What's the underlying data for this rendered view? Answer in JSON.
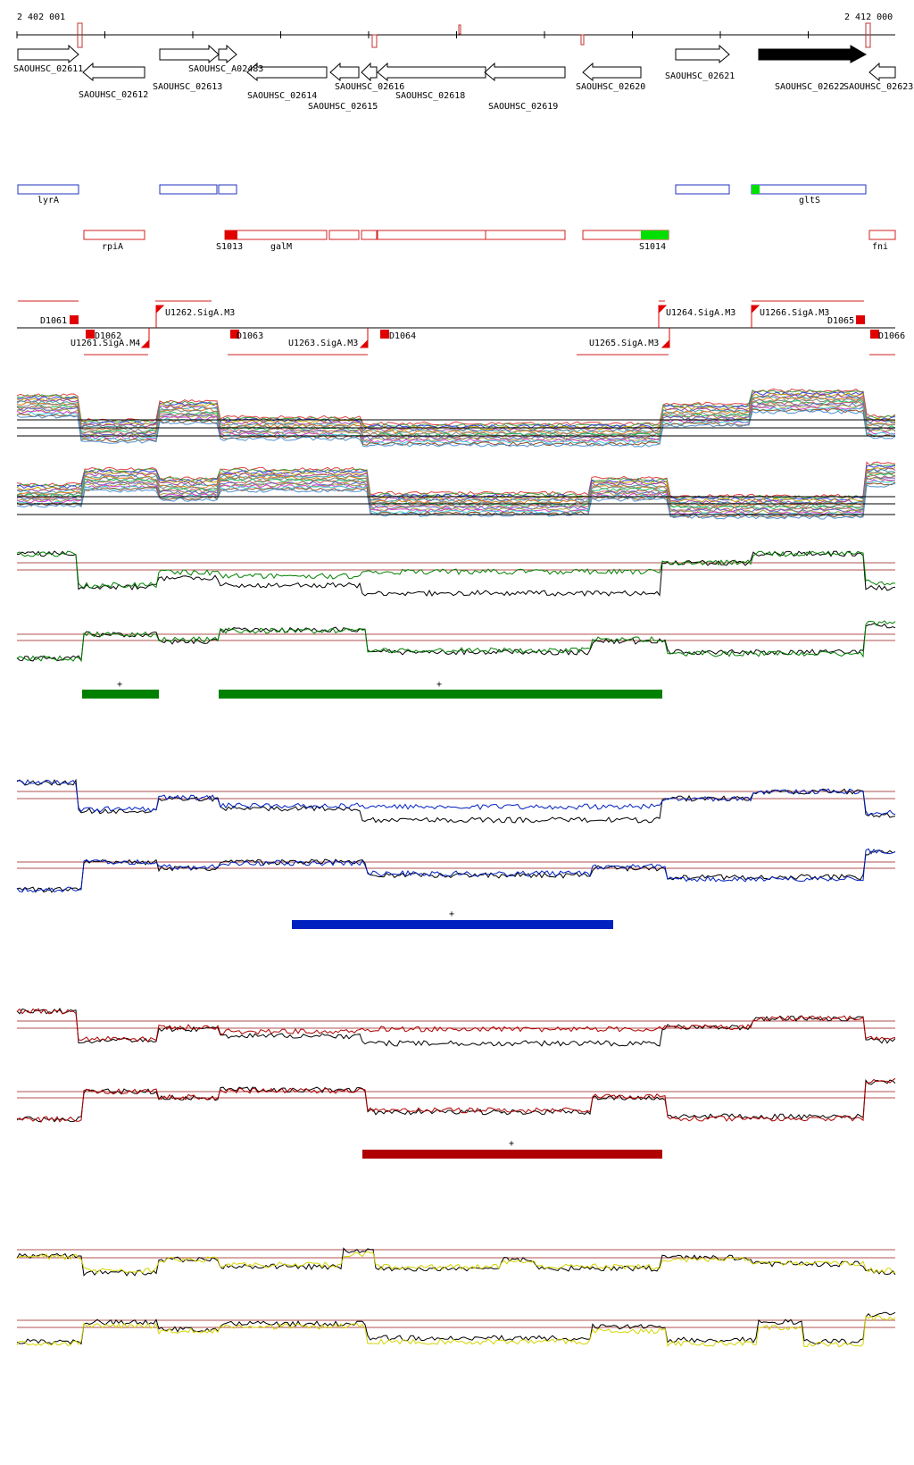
{
  "coords": {
    "start": "2 402 001",
    "end": "2 412 000"
  },
  "colors": {
    "green": "#008000",
    "blue": "#0020c0",
    "red": "#b00000",
    "yellow": "#d4d400",
    "black": "#000000",
    "refline": "#b05050",
    "cds_blue": "#2030c0",
    "cds_red": "#d02020",
    "bright_green": "#00e000",
    "marker_red": "#e00000"
  },
  "genes": [
    {
      "name": "SAOUHSC_02611",
      "dir": "right",
      "filled": false
    },
    {
      "name": "SAOUHSC_02612",
      "dir": "left",
      "filled": false
    },
    {
      "name": "SAOUHSC_02613",
      "dir": "right",
      "filled": false
    },
    {
      "name": "SAOUHSC_A02483",
      "dir": "right",
      "filled": false
    },
    {
      "name": "SAOUHSC_02614",
      "dir": "left",
      "filled": false
    },
    {
      "name": "SAOUHSC_02615",
      "dir": "left",
      "filled": false
    },
    {
      "name": "SAOUHSC_02616",
      "dir": "left",
      "filled": false
    },
    {
      "name": "SAOUHSC_02618",
      "dir": "left",
      "filled": false
    },
    {
      "name": "SAOUHSC_02619",
      "dir": "left",
      "filled": false
    },
    {
      "name": "SAOUHSC_02620",
      "dir": "left",
      "filled": false
    },
    {
      "name": "SAOUHSC_02621",
      "dir": "right",
      "filled": false
    },
    {
      "name": "SAOUHSC_02622",
      "dir": "right",
      "filled": true
    },
    {
      "name": "SAOUHSC_02623",
      "dir": "left",
      "filled": false
    }
  ],
  "features_plus": [
    {
      "label": "lyrA"
    },
    {
      "label": "gltS"
    }
  ],
  "features_minus": [
    {
      "label": "rpiA"
    },
    {
      "label": "S1013"
    },
    {
      "label": "galM"
    },
    {
      "label": "S1014"
    },
    {
      "label": "fni"
    }
  ],
  "promoters_top": [
    {
      "label": "D1061"
    },
    {
      "label": "U1262.SigA.M3"
    },
    {
      "label": "U1264.SigA.M3"
    },
    {
      "label": "U1266.SigA.M3"
    },
    {
      "label": "D1065"
    }
  ],
  "promoters_bottom": [
    {
      "label": "D1062"
    },
    {
      "label": "U1261.SigA.M4"
    },
    {
      "label": "D1063"
    },
    {
      "label": "U1263.SigA.M3"
    },
    {
      "label": "D1064"
    },
    {
      "label": "U1265.SigA.M3"
    },
    {
      "label": "D1066"
    }
  ],
  "segment_marks": {
    "green": [
      "+",
      "+"
    ],
    "blue": [
      "+"
    ],
    "red": [
      "+"
    ]
  }
}
